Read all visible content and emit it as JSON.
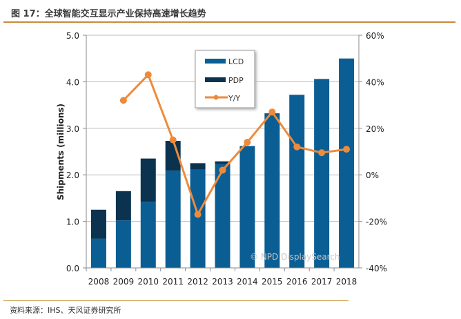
{
  "header": {
    "title": "图 17：全球智能交互显示产业保持高速增长趋势"
  },
  "footer": {
    "source": "资料来源：IHS、天风证券研究所"
  },
  "chart_data": {
    "type": "bar",
    "stacked": true,
    "categories": [
      "2008",
      "2009",
      "2010",
      "2011",
      "2012",
      "2013",
      "2014",
      "2015",
      "2016",
      "2017",
      "2018"
    ],
    "ylabel": "Shipments (millions)",
    "ylim": [
      0,
      5.0
    ],
    "yticks": [
      "0.0",
      "1.0",
      "2.0",
      "3.0",
      "4.0",
      "5.0"
    ],
    "y2lim": [
      -40,
      60
    ],
    "y2ticks": [
      "-40%",
      "-20%",
      "0%",
      "20%",
      "40%",
      "60%"
    ],
    "grid": true,
    "legend_position": "top-center",
    "watermark": "© NPD DisplaySearch",
    "series": [
      {
        "name": "LCD",
        "type": "bar",
        "color": "#0a5e94",
        "values": [
          0.63,
          1.02,
          1.42,
          2.09,
          2.11,
          2.23,
          2.62,
          3.3,
          3.72,
          4.06,
          4.5
        ]
      },
      {
        "name": "PDP",
        "type": "bar",
        "color": "#0b3350",
        "values": [
          0.62,
          0.63,
          0.93,
          0.64,
          0.14,
          0.06,
          0,
          0.02,
          0,
          0,
          0
        ]
      },
      {
        "name": "Y/Y",
        "type": "line",
        "axis": "right",
        "color": "#ee8a3a",
        "values": [
          null,
          32,
          43,
          15,
          -17,
          2,
          14,
          27,
          12,
          9.5,
          11
        ]
      }
    ]
  }
}
